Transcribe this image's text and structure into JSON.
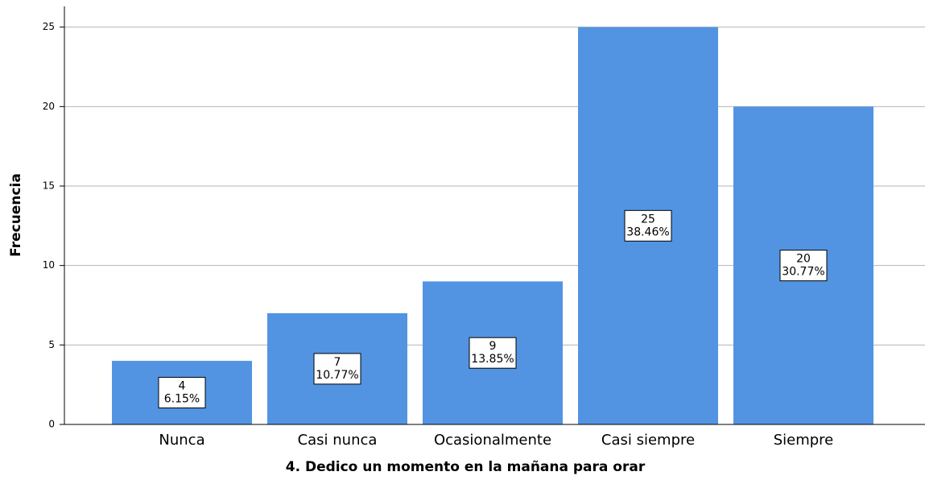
{
  "chart_data": {
    "type": "bar",
    "x_label": "4. Dedico un momento en la mañana para orar",
    "y_label": "Frecuencia",
    "categories": [
      "Nunca",
      "Casi nunca",
      "Ocasionalmente",
      "Casi siempre",
      "Siempre"
    ],
    "values": [
      4,
      7,
      9,
      25,
      20
    ],
    "percent_labels": [
      "6.15%",
      "10.77%",
      "13.85%",
      "38.46%",
      "30.77%"
    ],
    "color": "#5294e2",
    "ylim": [
      0,
      26.3
    ],
    "yticks": [
      0,
      5,
      10,
      15,
      20,
      25
    ],
    "grid": true
  }
}
